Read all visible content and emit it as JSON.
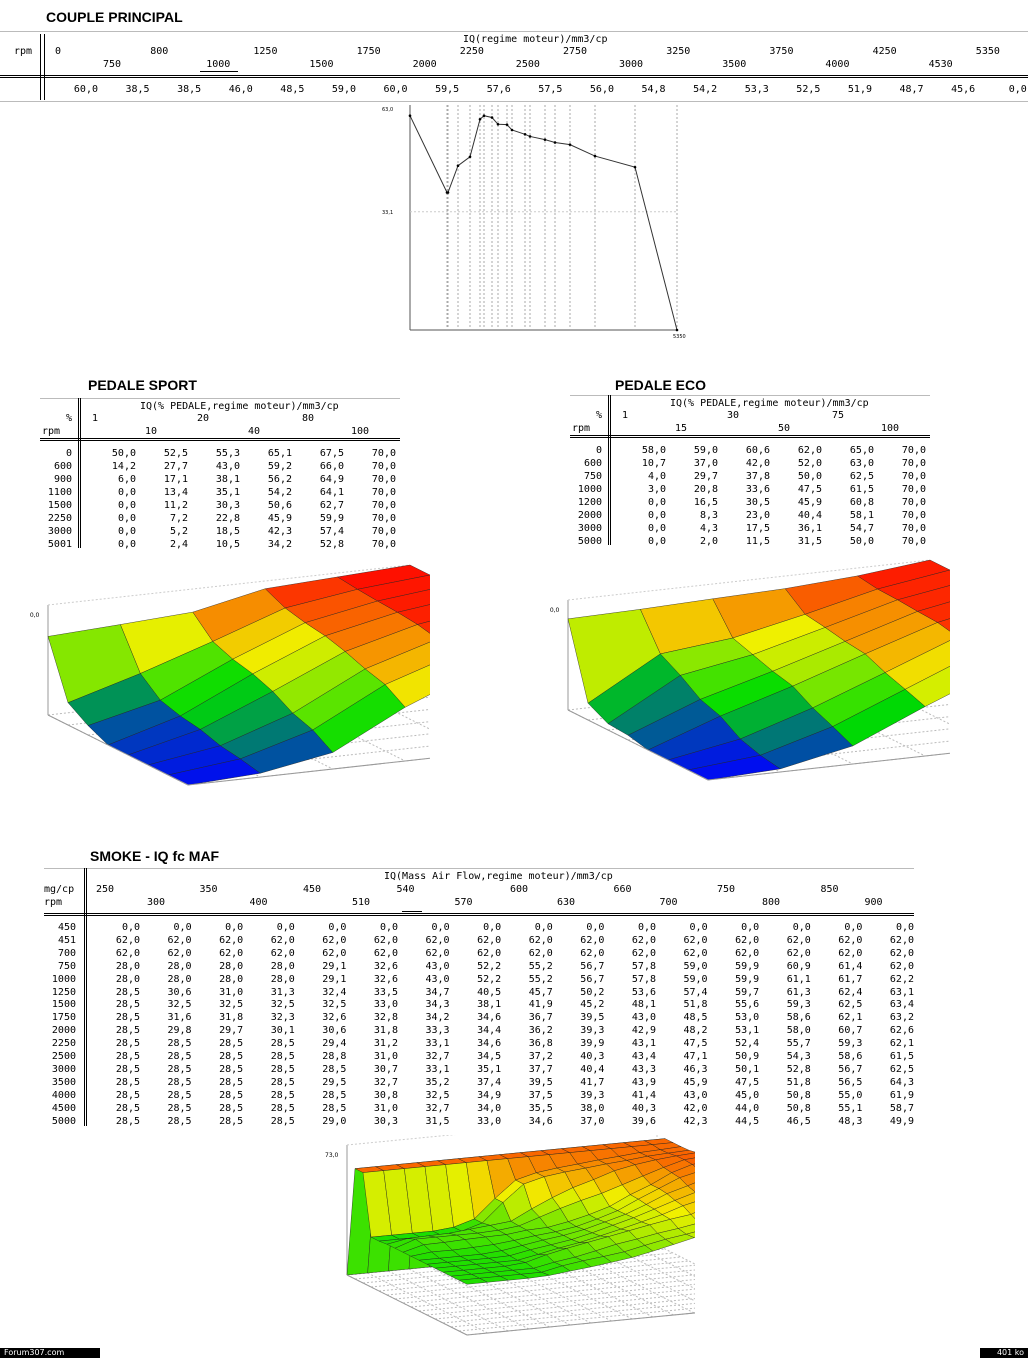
{
  "couple": {
    "title": "COUPLE PRINCIPAL",
    "axis_title": "IQ(regime moteur)/mm3/cp",
    "row_label": "rpm",
    "rpm_top": [
      "0",
      "800",
      "1250",
      "1750",
      "2250",
      "2750",
      "3250",
      "3750",
      "4250",
      "5350"
    ],
    "rpm_bottom": [
      "750",
      "1000",
      "1500",
      "2000",
      "2500",
      "3000",
      "3500",
      "4000",
      "4530"
    ],
    "values": [
      "60,0",
      "38,5",
      "38,5",
      "46,0",
      "48,5",
      "59,0",
      "60,0",
      "59,5",
      "57,6",
      "57,5",
      "56,0",
      "54,8",
      "54,2",
      "53,3",
      "52,5",
      "51,9",
      "48,7",
      "45,6",
      "0,0"
    ],
    "y_top_label": "63,0",
    "y_mid_label": "33,1",
    "x_end_label": "5350"
  },
  "chart_data": {
    "type": "line",
    "title": "",
    "x": [
      0,
      750,
      800,
      1000,
      1250,
      1500,
      1750,
      2000,
      2250,
      2500,
      2750,
      3000,
      3250,
      3500,
      3750,
      4000,
      4250,
      4530,
      5350
    ],
    "values": [
      60.0,
      38.5,
      38.5,
      46.0,
      48.5,
      59.0,
      60.0,
      59.5,
      57.6,
      57.5,
      56.0,
      54.8,
      54.2,
      53.3,
      52.5,
      51.9,
      48.7,
      45.6,
      0.0
    ]
  },
  "sport": {
    "title": "PEDALE SPORT",
    "axis_title": "IQ(% PEDALE,regime moteur)/mm3/cp",
    "pct_label": "%",
    "rpm_label": "rpm",
    "cols_top": [
      "1",
      "20",
      "80"
    ],
    "cols_bottom": [
      "10",
      "40",
      "100"
    ],
    "rows": [
      {
        "rpm": "0",
        "v": [
          "50,0",
          "52,5",
          "55,3",
          "65,1",
          "67,5",
          "70,0"
        ]
      },
      {
        "rpm": "600",
        "v": [
          "14,2",
          "27,7",
          "43,0",
          "59,2",
          "66,0",
          "70,0"
        ]
      },
      {
        "rpm": "900",
        "v": [
          "6,0",
          "17,1",
          "38,1",
          "56,2",
          "64,9",
          "70,0"
        ]
      },
      {
        "rpm": "1100",
        "v": [
          "0,0",
          "13,4",
          "35,1",
          "54,2",
          "64,1",
          "70,0"
        ]
      },
      {
        "rpm": "1500",
        "v": [
          "0,0",
          "11,2",
          "30,3",
          "50,6",
          "62,7",
          "70,0"
        ]
      },
      {
        "rpm": "2250",
        "v": [
          "0,0",
          "7,2",
          "22,8",
          "45,9",
          "59,9",
          "70,0"
        ]
      },
      {
        "rpm": "3000",
        "v": [
          "0,0",
          "5,2",
          "18,5",
          "42,3",
          "57,4",
          "70,0"
        ]
      },
      {
        "rpm": "5001",
        "v": [
          "0,0",
          "2,4",
          "10,5",
          "34,2",
          "52,8",
          "70,0"
        ]
      }
    ],
    "z_label": "70,0"
  },
  "eco": {
    "title": "PEDALE ECO",
    "axis_title": "IQ(% PEDALE,regime moteur)/mm3/cp",
    "pct_label": "%",
    "rpm_label": "rpm",
    "cols_top": [
      "1",
      "30",
      "75"
    ],
    "cols_bottom": [
      "15",
      "50",
      "100"
    ],
    "rows": [
      {
        "rpm": "0",
        "v": [
          "58,0",
          "59,0",
          "60,6",
          "62,0",
          "65,0",
          "70,0"
        ]
      },
      {
        "rpm": "600",
        "v": [
          "10,7",
          "37,0",
          "42,0",
          "52,0",
          "63,0",
          "70,0"
        ]
      },
      {
        "rpm": "750",
        "v": [
          "4,0",
          "29,7",
          "37,8",
          "50,0",
          "62,5",
          "70,0"
        ]
      },
      {
        "rpm": "1000",
        "v": [
          "3,0",
          "20,8",
          "33,6",
          "47,5",
          "61,5",
          "70,0"
        ]
      },
      {
        "rpm": "1200",
        "v": [
          "0,0",
          "16,5",
          "30,5",
          "45,9",
          "60,8",
          "70,0"
        ]
      },
      {
        "rpm": "2000",
        "v": [
          "0,0",
          "8,3",
          "23,0",
          "40,4",
          "58,1",
          "70,0"
        ]
      },
      {
        "rpm": "3000",
        "v": [
          "0,0",
          "4,3",
          "17,5",
          "36,1",
          "54,7",
          "70,0"
        ]
      },
      {
        "rpm": "5000",
        "v": [
          "0,0",
          "2,0",
          "11,5",
          "31,5",
          "50,0",
          "70,0"
        ]
      }
    ],
    "z_label": "70,0"
  },
  "smoke": {
    "title": "SMOKE - IQ fc MAF",
    "axis_title": "IQ(Mass Air Flow,regime moteur)/mm3/cp",
    "unit_label": "mg/cp",
    "rpm_label": "rpm",
    "cols_top": [
      "250",
      "350",
      "450",
      "540",
      "600",
      "660",
      "750",
      "850"
    ],
    "cols_bottom": [
      "300",
      "400",
      "510",
      "570",
      "630",
      "700",
      "800",
      "900"
    ],
    "rows": [
      {
        "rpm": "450",
        "v": [
          "0,0",
          "0,0",
          "0,0",
          "0,0",
          "0,0",
          "0,0",
          "0,0",
          "0,0",
          "0,0",
          "0,0",
          "0,0",
          "0,0",
          "0,0",
          "0,0",
          "0,0",
          "0,0"
        ]
      },
      {
        "rpm": "451",
        "v": [
          "62,0",
          "62,0",
          "62,0",
          "62,0",
          "62,0",
          "62,0",
          "62,0",
          "62,0",
          "62,0",
          "62,0",
          "62,0",
          "62,0",
          "62,0",
          "62,0",
          "62,0",
          "62,0"
        ]
      },
      {
        "rpm": "700",
        "v": [
          "62,0",
          "62,0",
          "62,0",
          "62,0",
          "62,0",
          "62,0",
          "62,0",
          "62,0",
          "62,0",
          "62,0",
          "62,0",
          "62,0",
          "62,0",
          "62,0",
          "62,0",
          "62,0"
        ]
      },
      {
        "rpm": "750",
        "v": [
          "28,0",
          "28,0",
          "28,0",
          "28,0",
          "29,1",
          "32,6",
          "43,0",
          "52,2",
          "55,2",
          "56,7",
          "57,8",
          "59,0",
          "59,9",
          "60,9",
          "61,4",
          "62,0"
        ]
      },
      {
        "rpm": "1000",
        "v": [
          "28,0",
          "28,0",
          "28,0",
          "28,0",
          "29,1",
          "32,6",
          "43,0",
          "52,2",
          "55,2",
          "56,7",
          "57,8",
          "59,0",
          "59,9",
          "61,1",
          "61,7",
          "62,2"
        ]
      },
      {
        "rpm": "1250",
        "v": [
          "28,5",
          "30,6",
          "31,0",
          "31,3",
          "32,4",
          "33,5",
          "34,7",
          "40,5",
          "45,7",
          "50,2",
          "53,6",
          "57,4",
          "59,7",
          "61,3",
          "62,4",
          "63,1"
        ]
      },
      {
        "rpm": "1500",
        "v": [
          "28,5",
          "32,5",
          "32,5",
          "32,5",
          "32,5",
          "33,0",
          "34,3",
          "38,1",
          "41,9",
          "45,2",
          "48,1",
          "51,8",
          "55,6",
          "59,3",
          "62,5",
          "63,4"
        ]
      },
      {
        "rpm": "1750",
        "v": [
          "28,5",
          "31,6",
          "31,8",
          "32,3",
          "32,6",
          "32,8",
          "34,2",
          "34,6",
          "36,7",
          "39,5",
          "43,0",
          "48,5",
          "53,0",
          "58,6",
          "62,1",
          "63,2"
        ]
      },
      {
        "rpm": "2000",
        "v": [
          "28,5",
          "29,8",
          "29,7",
          "30,1",
          "30,6",
          "31,8",
          "33,3",
          "34,4",
          "36,2",
          "39,3",
          "42,9",
          "48,2",
          "53,1",
          "58,0",
          "60,7",
          "62,6"
        ]
      },
      {
        "rpm": "2250",
        "v": [
          "28,5",
          "28,5",
          "28,5",
          "28,5",
          "29,4",
          "31,2",
          "33,1",
          "34,6",
          "36,8",
          "39,9",
          "43,1",
          "47,5",
          "52,4",
          "55,7",
          "59,3",
          "62,1"
        ]
      },
      {
        "rpm": "2500",
        "v": [
          "28,5",
          "28,5",
          "28,5",
          "28,5",
          "28,8",
          "31,0",
          "32,7",
          "34,5",
          "37,2",
          "40,3",
          "43,4",
          "47,1",
          "50,9",
          "54,3",
          "58,6",
          "61,5"
        ]
      },
      {
        "rpm": "3000",
        "v": [
          "28,5",
          "28,5",
          "28,5",
          "28,5",
          "28,5",
          "30,7",
          "33,1",
          "35,1",
          "37,7",
          "40,4",
          "43,3",
          "46,3",
          "50,1",
          "52,8",
          "56,7",
          "62,5"
        ]
      },
      {
        "rpm": "3500",
        "v": [
          "28,5",
          "28,5",
          "28,5",
          "28,5",
          "29,5",
          "32,7",
          "35,2",
          "37,4",
          "39,5",
          "41,7",
          "43,9",
          "45,9",
          "47,5",
          "51,8",
          "56,5",
          "64,3"
        ]
      },
      {
        "rpm": "4000",
        "v": [
          "28,5",
          "28,5",
          "28,5",
          "28,5",
          "28,5",
          "30,8",
          "32,5",
          "34,9",
          "37,5",
          "39,3",
          "41,4",
          "43,0",
          "45,0",
          "50,8",
          "55,0",
          "61,9"
        ]
      },
      {
        "rpm": "4500",
        "v": [
          "28,5",
          "28,5",
          "28,5",
          "28,5",
          "28,5",
          "31,0",
          "32,7",
          "34,0",
          "35,5",
          "38,0",
          "40,3",
          "42,0",
          "44,0",
          "50,8",
          "55,1",
          "58,7"
        ]
      },
      {
        "rpm": "5000",
        "v": [
          "28,5",
          "28,5",
          "28,5",
          "28,5",
          "29,0",
          "30,3",
          "31,5",
          "33,0",
          "34,6",
          "37,0",
          "39,6",
          "42,3",
          "44,5",
          "46,5",
          "48,3",
          "49,9"
        ]
      }
    ],
    "z_label": "73,0"
  },
  "footer": {
    "left": "Forum307.com",
    "right": "401 ko"
  }
}
